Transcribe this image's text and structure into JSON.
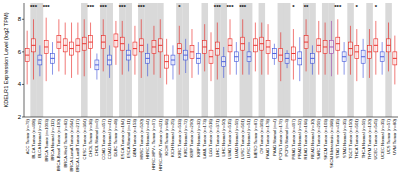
{
  "chart_data": {
    "type": "box",
    "y_label": "KDELR1 Expression Level (log2 TPM)",
    "ylim": [
      2,
      9
    ],
    "yticks": [
      2,
      4,
      6,
      8
    ],
    "categories": [
      "ACC Tumor (n=79)",
      "BLCA Tumor (n=408)",
      "BLCA Normal (n=19)",
      "BRCA Tumor (n=1093)",
      "BRCA Normal (n=112)",
      "BRCA-Basal Tumor (n=190)",
      "BRCA-Her2 Tumor (n=82)",
      "BRCA-LumA Tumor (n=564)",
      "BRCA-LumB Tumor (n=217)",
      "CESC Tumor (n=304)",
      "CHOL Tumor (n=36)",
      "CHOL Normal (n=9)",
      "COAD Tumor (n=457)",
      "COAD Normal (n=41)",
      "DLBC Tumor (n=48)",
      "ESCA Tumor (n=184)",
      "ESCA Normal (n=11)",
      "GBM Tumor (n=153)",
      "HNSC Tumor (n=520)",
      "HNSC Normal (n=44)",
      "HNSC-HPV+ Tumor (n=97)",
      "HNSC-HPV- Tumor (n=421)",
      "KICH Tumor (n=66)",
      "KICH Normal (n=25)",
      "KIRC Tumor (n=533)",
      "KIRC Normal (n=72)",
      "KIRP Tumor (n=290)",
      "KIRP Normal (n=32)",
      "LAML Tumor (n=173)",
      "LGG Tumor (n=516)",
      "LIHC Tumor (n=371)",
      "LIHC Normal (n=50)",
      "LUAD Tumor (n=515)",
      "LUAD Normal (n=59)",
      "LUSC Tumor (n=501)",
      "LUSC Normal (n=51)",
      "MESO Tumor (n=87)",
      "OV Tumor (n=303)",
      "PAAD Tumor (n=178)",
      "PAAD Normal (n=4)",
      "PCPG Tumor (n=179)",
      "PCPG Normal (n=3)",
      "PRAD Tumor (n=497)",
      "PRAD Normal (n=52)",
      "READ Tumor (n=166)",
      "READ Normal (n=10)",
      "SARC Tumor (n=259)",
      "SKCM Tumor (n=103)",
      "SKCM Metastasis (n=368)",
      "STAD Tumor (n=415)",
      "STAD Normal (n=35)",
      "TGCT Tumor (n=150)",
      "THCA Tumor (n=501)",
      "THCA Normal (n=59)",
      "THYM Tumor (n=120)",
      "UCEC Tumor (n=545)",
      "UCEC Normal (n=35)",
      "UCS Tumor (n=57)",
      "UVM Tumor (n=80)"
    ],
    "boxes": [
      {
        "min": 4.0,
        "q1": 5.4,
        "median": 5.8,
        "q3": 6.2,
        "max": 7.3
      },
      {
        "min": 4.3,
        "q1": 6.0,
        "median": 6.4,
        "q3": 6.8,
        "max": 8.0
      },
      {
        "min": 4.5,
        "q1": 5.2,
        "median": 5.5,
        "q3": 5.8,
        "max": 6.4
      },
      {
        "min": 4.2,
        "q1": 5.9,
        "median": 6.3,
        "q3": 6.7,
        "max": 8.1
      },
      {
        "min": 4.6,
        "q1": 5.3,
        "median": 5.6,
        "q3": 5.9,
        "max": 6.6
      },
      {
        "min": 4.8,
        "q1": 6.2,
        "median": 6.6,
        "q3": 7.0,
        "max": 8.0
      },
      {
        "min": 4.6,
        "q1": 6.0,
        "median": 6.4,
        "q3": 6.8,
        "max": 7.8
      },
      {
        "min": 4.4,
        "q1": 5.8,
        "median": 6.2,
        "q3": 6.6,
        "max": 7.8
      },
      {
        "min": 4.6,
        "q1": 6.0,
        "median": 6.4,
        "q3": 6.8,
        "max": 7.8
      },
      {
        "min": 4.5,
        "q1": 6.1,
        "median": 6.5,
        "q3": 6.9,
        "max": 8.0
      },
      {
        "min": 5.0,
        "q1": 6.2,
        "median": 6.6,
        "q3": 7.0,
        "max": 7.8
      },
      {
        "min": 4.3,
        "q1": 4.9,
        "median": 5.2,
        "q3": 5.5,
        "max": 5.9
      },
      {
        "min": 4.8,
        "q1": 6.2,
        "median": 6.6,
        "q3": 7.0,
        "max": 8.0
      },
      {
        "min": 4.4,
        "q1": 5.2,
        "median": 5.5,
        "q3": 5.8,
        "max": 6.4
      },
      {
        "min": 5.2,
        "q1": 6.3,
        "median": 6.7,
        "q3": 7.1,
        "max": 7.9
      },
      {
        "min": 4.6,
        "q1": 6.1,
        "median": 6.5,
        "q3": 6.9,
        "max": 7.9
      },
      {
        "min": 4.8,
        "q1": 5.5,
        "median": 5.8,
        "q3": 6.1,
        "max": 6.5
      },
      {
        "min": 4.6,
        "q1": 5.8,
        "median": 6.2,
        "q3": 6.6,
        "max": 7.6
      },
      {
        "min": 4.4,
        "q1": 6.0,
        "median": 6.4,
        "q3": 6.8,
        "max": 8.0
      },
      {
        "min": 4.5,
        "q1": 5.3,
        "median": 5.6,
        "q3": 5.9,
        "max": 6.5
      },
      {
        "min": 4.6,
        "q1": 5.9,
        "median": 6.3,
        "q3": 6.7,
        "max": 7.6
      },
      {
        "min": 4.4,
        "q1": 6.0,
        "median": 6.4,
        "q3": 6.8,
        "max": 8.0
      },
      {
        "min": 4.0,
        "q1": 5.0,
        "median": 5.4,
        "q3": 5.8,
        "max": 6.8
      },
      {
        "min": 4.3,
        "q1": 5.2,
        "median": 5.5,
        "q3": 5.8,
        "max": 6.4
      },
      {
        "min": 4.6,
        "q1": 5.9,
        "median": 6.2,
        "q3": 6.5,
        "max": 7.6
      },
      {
        "min": 4.7,
        "q1": 5.5,
        "median": 5.8,
        "q3": 6.1,
        "max": 6.8
      },
      {
        "min": 4.4,
        "q1": 5.6,
        "median": 6.0,
        "q3": 6.4,
        "max": 7.4
      },
      {
        "min": 4.6,
        "q1": 5.3,
        "median": 5.6,
        "q3": 5.9,
        "max": 6.6
      },
      {
        "min": 4.8,
        "q1": 5.9,
        "median": 6.3,
        "q3": 6.7,
        "max": 7.7
      },
      {
        "min": 4.2,
        "q1": 5.3,
        "median": 5.7,
        "q3": 6.1,
        "max": 7.2
      },
      {
        "min": 4.3,
        "q1": 5.8,
        "median": 6.2,
        "q3": 6.6,
        "max": 7.8
      },
      {
        "min": 4.4,
        "q1": 5.1,
        "median": 5.4,
        "q3": 5.7,
        "max": 6.3
      },
      {
        "min": 4.6,
        "q1": 6.0,
        "median": 6.4,
        "q3": 6.8,
        "max": 8.0
      },
      {
        "min": 4.6,
        "q1": 5.4,
        "median": 5.7,
        "q3": 6.0,
        "max": 6.6
      },
      {
        "min": 4.6,
        "q1": 6.1,
        "median": 6.5,
        "q3": 6.9,
        "max": 8.0
      },
      {
        "min": 4.6,
        "q1": 5.4,
        "median": 5.7,
        "q3": 6.0,
        "max": 6.6
      },
      {
        "min": 4.8,
        "q1": 6.0,
        "median": 6.4,
        "q3": 6.8,
        "max": 7.8
      },
      {
        "min": 4.6,
        "q1": 6.1,
        "median": 6.5,
        "q3": 6.9,
        "max": 7.8
      },
      {
        "min": 4.6,
        "q1": 5.9,
        "median": 6.3,
        "q3": 6.7,
        "max": 7.7
      },
      {
        "min": 5.2,
        "q1": 5.6,
        "median": 5.9,
        "q3": 6.2,
        "max": 6.5
      },
      {
        "min": 4.2,
        "q1": 5.4,
        "median": 5.8,
        "q3": 6.2,
        "max": 7.2
      },
      {
        "min": 5.0,
        "q1": 5.3,
        "median": 5.6,
        "q3": 5.9,
        "max": 6.1
      },
      {
        "min": 4.3,
        "q1": 5.5,
        "median": 5.9,
        "q3": 6.3,
        "max": 7.4
      },
      {
        "min": 4.2,
        "q1": 5.2,
        "median": 5.6,
        "q3": 6.0,
        "max": 6.9
      },
      {
        "min": 4.8,
        "q1": 6.2,
        "median": 6.6,
        "q3": 7.0,
        "max": 8.0
      },
      {
        "min": 4.6,
        "q1": 5.3,
        "median": 5.6,
        "q3": 5.9,
        "max": 6.4
      },
      {
        "min": 4.6,
        "q1": 6.0,
        "median": 6.4,
        "q3": 6.8,
        "max": 7.9
      },
      {
        "min": 4.6,
        "q1": 5.9,
        "median": 6.3,
        "q3": 6.7,
        "max": 7.8
      },
      {
        "min": 4.5,
        "q1": 5.9,
        "median": 6.3,
        "q3": 6.7,
        "max": 7.9
      },
      {
        "min": 4.6,
        "q1": 6.1,
        "median": 6.5,
        "q3": 6.9,
        "max": 8.0
      },
      {
        "min": 4.6,
        "q1": 5.4,
        "median": 5.7,
        "q3": 6.0,
        "max": 6.6
      },
      {
        "min": 4.6,
        "q1": 5.8,
        "median": 6.2,
        "q3": 6.6,
        "max": 7.6
      },
      {
        "min": 4.2,
        "q1": 5.6,
        "median": 6.0,
        "q3": 6.4,
        "max": 7.4
      },
      {
        "min": 4.4,
        "q1": 5.3,
        "median": 5.7,
        "q3": 6.1,
        "max": 6.8
      },
      {
        "min": 4.4,
        "q1": 5.6,
        "median": 6.0,
        "q3": 6.4,
        "max": 7.4
      },
      {
        "min": 4.6,
        "q1": 6.0,
        "median": 6.4,
        "q3": 6.8,
        "max": 7.9
      },
      {
        "min": 4.6,
        "q1": 5.4,
        "median": 5.7,
        "q3": 6.0,
        "max": 6.6
      },
      {
        "min": 4.8,
        "q1": 6.0,
        "median": 6.4,
        "q3": 6.8,
        "max": 7.8
      },
      {
        "min": 4.0,
        "q1": 5.2,
        "median": 5.6,
        "q3": 6.0,
        "max": 7.0
      }
    ],
    "colors": [
      "#e8201c",
      "#e8201c",
      "#3a4fd9",
      "#e8201c",
      "#3a4fd9",
      "#e8201c",
      "#e8201c",
      "#e8201c",
      "#e8201c",
      "#e8201c",
      "#e8201c",
      "#3a4fd9",
      "#e8201c",
      "#3a4fd9",
      "#e8201c",
      "#e8201c",
      "#3a4fd9",
      "#e8201c",
      "#e8201c",
      "#3a4fd9",
      "#e8201c",
      "#e8201c",
      "#e8201c",
      "#3a4fd9",
      "#e8201c",
      "#3a4fd9",
      "#e8201c",
      "#3a4fd9",
      "#e8201c",
      "#e8201c",
      "#e8201c",
      "#3a4fd9",
      "#e8201c",
      "#3a4fd9",
      "#e8201c",
      "#3a4fd9",
      "#e8201c",
      "#e8201c",
      "#e8201c",
      "#3a4fd9",
      "#e8201c",
      "#3a4fd9",
      "#e8201c",
      "#3a4fd9",
      "#e8201c",
      "#3a4fd9",
      "#e8201c",
      "#e8201c",
      "#9b3fa8",
      "#e8201c",
      "#3a4fd9",
      "#e8201c",
      "#e8201c",
      "#3a4fd9",
      "#e8201c",
      "#e8201c",
      "#3a4fd9",
      "#e8201c",
      "#e8201c"
    ],
    "significance": [
      null,
      "***",
      null,
      "***",
      null,
      null,
      null,
      null,
      null,
      null,
      "***",
      null,
      "***",
      null,
      null,
      "***",
      null,
      null,
      "***",
      null,
      null,
      null,
      null,
      null,
      "*",
      null,
      null,
      null,
      null,
      null,
      "***",
      null,
      "***",
      null,
      "***",
      null,
      null,
      null,
      null,
      null,
      null,
      null,
      "*",
      null,
      "**",
      null,
      null,
      null,
      null,
      "***",
      null,
      null,
      "*",
      null,
      null,
      "*",
      null,
      null,
      null
    ]
  }
}
